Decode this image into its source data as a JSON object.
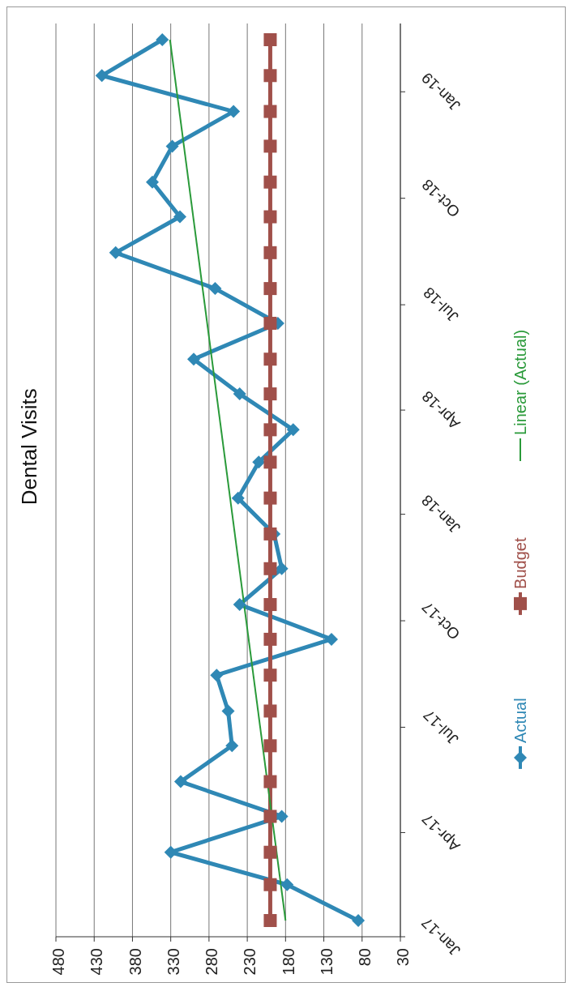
{
  "chart_data": {
    "type": "line",
    "title": "Dental Visits",
    "orientation": "horizontal",
    "x": [
      "2017-01-15",
      "2017-02-15",
      "2017-03-15",
      "2017-04-15",
      "2017-05-15",
      "2017-06-15",
      "2017-07-15",
      "2017-08-15",
      "2017-09-15",
      "2017-10-15",
      "2017-11-15",
      "2017-12-15",
      "2018-01-15",
      "2018-02-15",
      "2018-03-15",
      "2018-04-15",
      "2018-05-15",
      "2018-06-15",
      "2018-07-15",
      "2018-08-15",
      "2018-09-15",
      "2018-10-15",
      "2018-11-15",
      "2018-12-15",
      "2019-01-15",
      "2019-02-15"
    ],
    "series": [
      {
        "name": "Actual",
        "color": "#2f88b5",
        "marker": "diamond",
        "values": [
          85,
          178,
          330,
          185,
          317,
          250,
          255,
          270,
          120,
          240,
          185,
          195,
          242,
          215,
          170,
          240,
          300,
          190,
          272,
          402,
          318,
          354,
          328,
          248,
          420,
          341
        ]
      },
      {
        "name": "Budget",
        "color": "#a0504a",
        "marker": "square",
        "values": [
          200,
          200,
          200,
          200,
          200,
          200,
          200,
          200,
          200,
          200,
          200,
          200,
          200,
          200,
          200,
          200,
          200,
          200,
          200,
          200,
          200,
          200,
          200,
          200,
          200,
          200
        ]
      },
      {
        "name": "Linear (Actual)",
        "color": "#2a9a3a",
        "marker": "none",
        "x": [
          "2017-01-15",
          "2019-02-15"
        ],
        "values": [
          180,
          331
        ]
      }
    ],
    "ylim": [
      "2017-01",
      "2019-03"
    ],
    "yticks": [
      {
        "value": "2017-01",
        "label": "Jan-17"
      },
      {
        "value": "2017-04",
        "label": "Apr-17"
      },
      {
        "value": "2017-07",
        "label": "Jul-17"
      },
      {
        "value": "2017-10",
        "label": "Oct-17"
      },
      {
        "value": "2018-01",
        "label": "Jan-18"
      },
      {
        "value": "2018-04",
        "label": "Apr-18"
      },
      {
        "value": "2018-07",
        "label": "Jul-18"
      },
      {
        "value": "2018-10",
        "label": "Oct-18"
      },
      {
        "value": "2019-01",
        "label": "Jan-19"
      }
    ],
    "xlim": [
      480,
      30
    ],
    "xticks": [
      480,
      430,
      380,
      330,
      280,
      230,
      180,
      130,
      80,
      30
    ],
    "grid": "x",
    "legend": "right"
  }
}
